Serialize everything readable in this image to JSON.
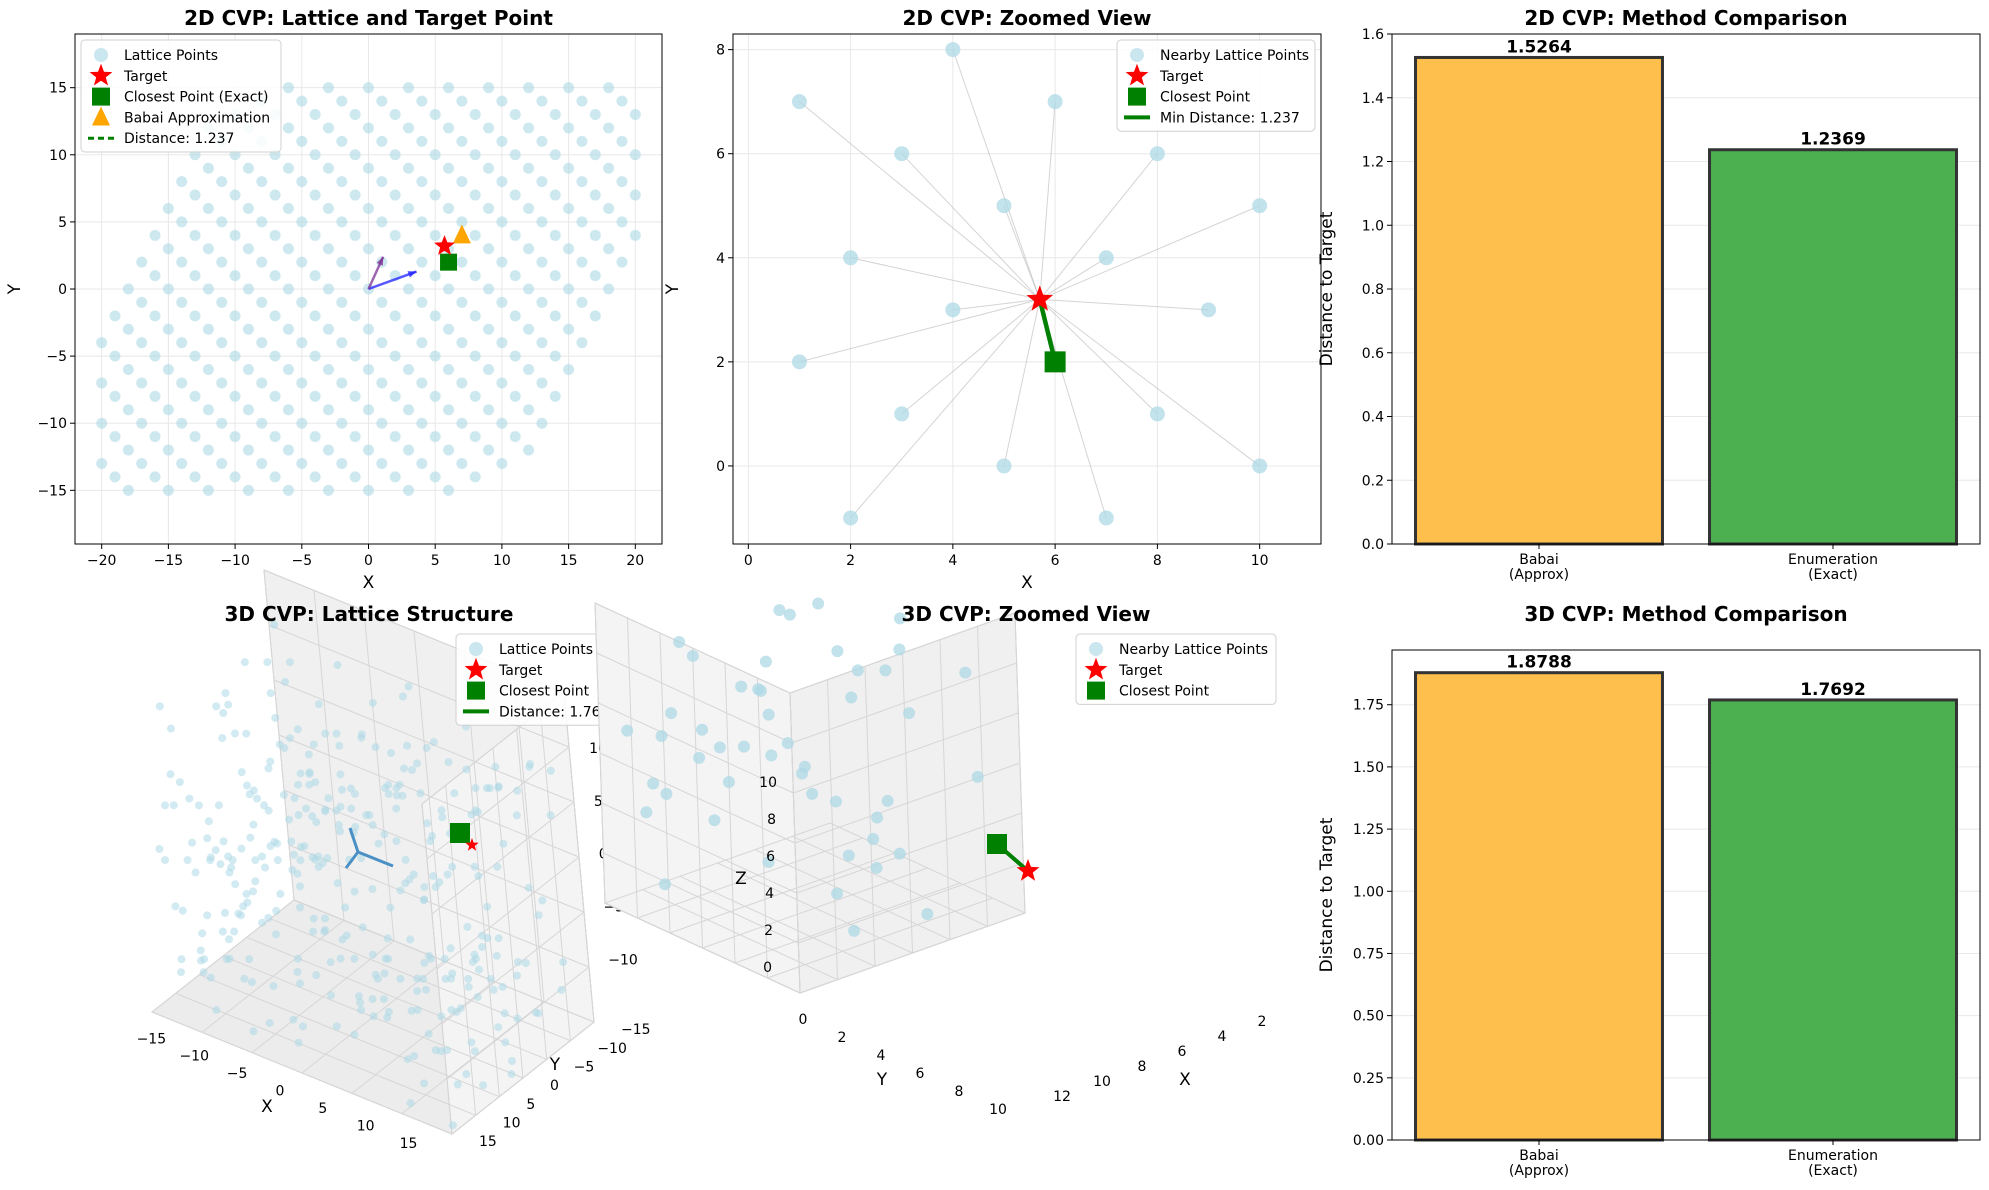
{
  "colors": {
    "lattice": "#add8e6",
    "target": "#ff0000",
    "closest": "#008000",
    "babai": "#ffa500",
    "babai_bar": "#ffbf4d",
    "enum_bar": "#4caf50",
    "basis1": "#1f1fff",
    "basis2": "#7b3294",
    "grid": "#e8e8e8"
  },
  "chart_data": [
    {
      "id": "p1",
      "type": "scatter",
      "title": "2D CVP: Lattice and Target Point",
      "xlabel": "X",
      "ylabel": "Y",
      "xlim": [
        -22,
        22
      ],
      "ylim": [
        -19,
        19
      ],
      "xticks": [
        -20,
        -15,
        -10,
        -5,
        0,
        5,
        10,
        15,
        20
      ],
      "yticks": [
        -15,
        -10,
        -5,
        0,
        5,
        10,
        15
      ],
      "basis": [
        [
          2,
          1
        ],
        [
          1,
          2
        ]
      ],
      "lattice_range": [
        -12,
        12
      ],
      "basis_vectors": [
        [
          3.6,
          1.3
        ],
        [
          1.1,
          2.4
        ]
      ],
      "target": [
        5.7,
        3.2
      ],
      "closest": [
        6,
        2
      ],
      "babai": [
        7,
        4
      ],
      "legend": [
        "Lattice Points",
        "Target",
        "Closest Point (Exact)",
        "Babai Approximation",
        "Distance: 1.237"
      ]
    },
    {
      "id": "p2",
      "type": "scatter",
      "title": "2D CVP: Zoomed View",
      "xlabel": "X",
      "ylabel": "Y",
      "xlim": [
        -0.3,
        11.2
      ],
      "ylim": [
        -1.5,
        8.3
      ],
      "xticks": [
        0,
        2,
        4,
        6,
        8,
        10
      ],
      "yticks": [
        0,
        2,
        4,
        6,
        8
      ],
      "points": [
        [
          4,
          8
        ],
        [
          1,
          7
        ],
        [
          6,
          7
        ],
        [
          3,
          6
        ],
        [
          8,
          6
        ],
        [
          5,
          5
        ],
        [
          10,
          5
        ],
        [
          2,
          4
        ],
        [
          7,
          4
        ],
        [
          4,
          3
        ],
        [
          9,
          3
        ],
        [
          1,
          2
        ],
        [
          6,
          2
        ],
        [
          3,
          1
        ],
        [
          8,
          1
        ],
        [
          5,
          0
        ],
        [
          10,
          0
        ],
        [
          2,
          -1
        ],
        [
          7,
          -1
        ]
      ],
      "target": [
        5.7,
        3.2
      ],
      "closest": [
        6,
        2
      ],
      "legend": [
        "Nearby Lattice Points",
        "Target",
        "Closest Point",
        "Min Distance: 1.237"
      ]
    },
    {
      "id": "p3",
      "type": "bar",
      "title": "2D CVP: Method Comparison",
      "ylabel": "Distance to Target",
      "categories": [
        "Babai\n(Approx)",
        "Enumeration\n(Exact)"
      ],
      "values": [
        1.5264,
        1.2369
      ],
      "labels": [
        "1.5264",
        "1.2369"
      ],
      "ylim": [
        0,
        1.6
      ],
      "yticks": [
        "0.0",
        "0.2",
        "0.4",
        "0.6",
        "0.8",
        "1.0",
        "1.2",
        "1.4",
        "1.6"
      ]
    },
    {
      "id": "p4",
      "type": "scatter",
      "title": "3D CVP: Lattice Structure",
      "xlabel": "X",
      "ylabel": "Y",
      "zlabel": "Z",
      "xticks": [
        "−15",
        "−10",
        "−5",
        "0",
        "5",
        "10",
        "15"
      ],
      "yticks": [
        "15",
        "10",
        "5",
        "0",
        "−5",
        "−10",
        "−15"
      ],
      "zticks": [
        "10",
        "5",
        "0",
        "−5",
        "−10"
      ],
      "legend": [
        "Lattice Points",
        "Target",
        "Closest Point",
        "Distance: 1.769"
      ]
    },
    {
      "id": "p5",
      "type": "scatter",
      "title": "3D CVP: Zoomed View",
      "xlabel": "X",
      "ylabel": "Y",
      "zlabel": "Z",
      "xticks": [
        "2",
        "4",
        "6",
        "8",
        "10",
        "12"
      ],
      "yticks": [
        "0",
        "2",
        "4",
        "6",
        "8",
        "10"
      ],
      "zticks": [
        "10",
        "8",
        "6",
        "4",
        "2",
        "0"
      ],
      "legend": [
        "Nearby Lattice Points",
        "Target",
        "Closest Point"
      ]
    },
    {
      "id": "p6",
      "type": "bar",
      "title": "3D CVP: Method Comparison",
      "ylabel": "Distance to Target",
      "categories": [
        "Babai\n(Approx)",
        "Enumeration\n(Exact)"
      ],
      "values": [
        1.8788,
        1.7692
      ],
      "labels": [
        "1.8788",
        "1.7692"
      ],
      "ylim": [
        0,
        1.97
      ],
      "yticks": [
        "0.00",
        "0.25",
        "0.50",
        "0.75",
        "1.00",
        "1.25",
        "1.50",
        "1.75"
      ]
    }
  ]
}
